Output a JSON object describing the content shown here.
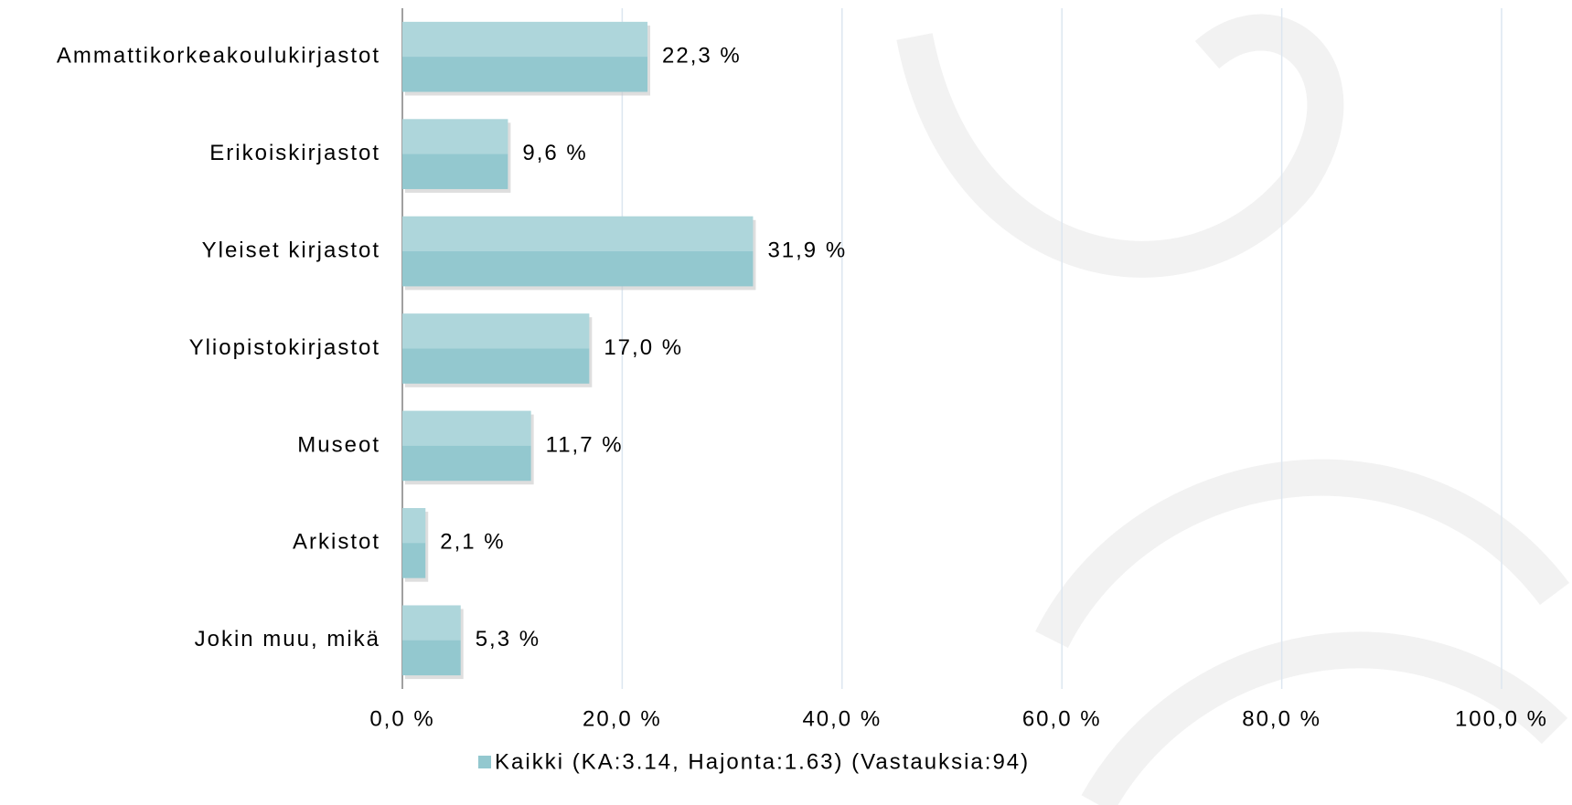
{
  "chart_data": {
    "type": "bar",
    "orientation": "horizontal",
    "categories": [
      "Ammattikorkeakoulukirjastot",
      "Erikoiskirjastot",
      "Yleiset kirjastot",
      "Yliopistokirjastot",
      "Museot",
      "Arkistot",
      "Jokin muu, mikä"
    ],
    "series": [
      {
        "name": "Kaikki (KA:3.14, Hajonta:1.63) (Vastauksia:94)",
        "color": "#93c8cf",
        "values": [
          22.3,
          9.6,
          31.9,
          17.0,
          11.7,
          2.1,
          5.3
        ],
        "value_labels": [
          "22,3 %",
          "9,6 %",
          "31,9 %",
          "17,0 %",
          "11,7 %",
          "2,1 %",
          "5,3 %"
        ]
      }
    ],
    "xlim": [
      0,
      100
    ],
    "xticks": [
      {
        "value": 0,
        "label": "0,0 %"
      },
      {
        "value": 20,
        "label": "20,0 %"
      },
      {
        "value": 40,
        "label": "40,0 %"
      },
      {
        "value": 60,
        "label": "60,0 %"
      },
      {
        "value": 80,
        "label": "80,0 %"
      },
      {
        "value": 100,
        "label": "100,0 %"
      }
    ],
    "grid": true,
    "legend": "bottom"
  }
}
